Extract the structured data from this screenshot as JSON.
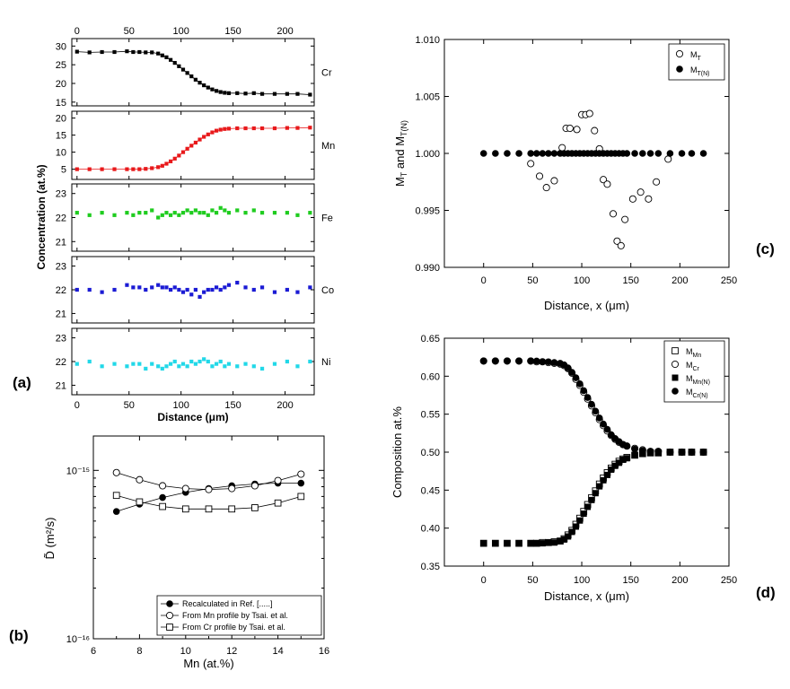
{
  "panel_labels": {
    "a": "(a)",
    "b": "(b)",
    "c": "(c)",
    "d": "(d)"
  },
  "chart_data": [
    {
      "id": "a",
      "type": "scatter",
      "title": "",
      "xlabel": "Distance (μm)",
      "ylabel": "Concentration (at.%)",
      "xlim": [
        -5,
        228
      ],
      "xticks": [
        0,
        50,
        100,
        150,
        200
      ],
      "top_xticks": [
        0,
        50,
        100,
        150,
        200
      ],
      "x": [
        0,
        12,
        24,
        36,
        48,
        54,
        60,
        66,
        72,
        78,
        82,
        86,
        90,
        94,
        98,
        102,
        106,
        110,
        114,
        118,
        122,
        126,
        130,
        134,
        138,
        142,
        146,
        154,
        162,
        170,
        178,
        190,
        202,
        212,
        224
      ],
      "series": [
        {
          "name": "Cr",
          "color": "#000000",
          "ylim": [
            14,
            32
          ],
          "yticks": [
            15,
            20,
            25,
            30
          ],
          "values": [
            28.5,
            28.3,
            28.4,
            28.4,
            28.6,
            28.4,
            28.4,
            28.3,
            28.3,
            28.0,
            27.5,
            27.0,
            26.3,
            25.5,
            24.6,
            23.7,
            22.8,
            21.9,
            21.0,
            20.2,
            19.5,
            18.9,
            18.4,
            18.0,
            17.7,
            17.5,
            17.4,
            17.4,
            17.3,
            17.4,
            17.2,
            17.2,
            17.2,
            17.2,
            17.0
          ]
        },
        {
          "name": "Mn",
          "color": "#e8191b",
          "ylim": [
            2,
            22
          ],
          "yticks": [
            5,
            10,
            15,
            20
          ],
          "values": [
            5.0,
            5.0,
            5.0,
            5.0,
            5.0,
            5.0,
            5.0,
            5.1,
            5.3,
            5.6,
            6.0,
            6.6,
            7.3,
            8.1,
            9.0,
            10.0,
            11.0,
            11.9,
            12.8,
            13.7,
            14.5,
            15.2,
            15.8,
            16.3,
            16.6,
            16.8,
            16.9,
            17.0,
            17.0,
            17.0,
            17.0,
            17.0,
            17.1,
            17.1,
            17.2
          ]
        },
        {
          "name": "Fe",
          "color": "#1fcc1f",
          "ylim": [
            20.6,
            23.4
          ],
          "yticks": [
            21,
            22,
            23
          ],
          "values": [
            22.2,
            22.1,
            22.2,
            22.1,
            22.2,
            22.1,
            22.2,
            22.2,
            22.3,
            22.0,
            22.1,
            22.2,
            22.1,
            22.2,
            22.1,
            22.2,
            22.3,
            22.2,
            22.3,
            22.2,
            22.2,
            22.1,
            22.3,
            22.2,
            22.4,
            22.3,
            22.2,
            22.3,
            22.2,
            22.3,
            22.2,
            22.2,
            22.2,
            22.1,
            22.2
          ]
        },
        {
          "name": "Co",
          "color": "#1b1bd4",
          "ylim": [
            20.6,
            23.4
          ],
          "yticks": [
            21,
            22,
            23
          ],
          "values": [
            22.0,
            22.0,
            21.9,
            22.0,
            22.2,
            22.1,
            22.1,
            22.0,
            22.1,
            22.2,
            22.1,
            22.1,
            22.0,
            22.1,
            22.0,
            21.9,
            22.0,
            21.8,
            22.0,
            21.7,
            21.9,
            22.0,
            22.0,
            22.1,
            22.0,
            22.1,
            22.2,
            22.3,
            22.1,
            22.0,
            22.1,
            21.9,
            22.0,
            21.9,
            22.1
          ]
        },
        {
          "name": "Ni",
          "color": "#22d8e8",
          "ylim": [
            20.6,
            23.4
          ],
          "yticks": [
            21,
            22,
            23
          ],
          "values": [
            21.9,
            22.0,
            21.8,
            21.9,
            21.8,
            21.9,
            21.9,
            21.7,
            21.9,
            21.8,
            21.7,
            21.8,
            21.9,
            22.0,
            21.8,
            21.9,
            21.8,
            22.0,
            21.9,
            22.0,
            22.1,
            22.0,
            21.8,
            21.9,
            22.0,
            21.8,
            21.9,
            21.8,
            21.9,
            21.8,
            21.7,
            21.9,
            22.0,
            21.8,
            22.0
          ]
        }
      ]
    },
    {
      "id": "b",
      "type": "line",
      "title": "",
      "xlabel": "Mn (at.%)",
      "ylabel": "D̃ (m²/s)",
      "xlim": [
        6,
        16
      ],
      "xticks": [
        6,
        8,
        10,
        12,
        14,
        16
      ],
      "yscale": "log",
      "ylim": [
        1e-16,
        1.6e-15
      ],
      "ytick_labels": [
        "10⁻¹⁵",
        "10⁻¹⁶"
      ],
      "ytick_values": [
        1e-15,
        1e-16
      ],
      "legend_position": "bottom-right",
      "series": [
        {
          "name": "Recalculated in Ref. [.....]",
          "marker": "filled-circle",
          "x": [
            7,
            8,
            9,
            10,
            11,
            12,
            13,
            14,
            15
          ],
          "values": [
            5.7e-16,
            6.3e-16,
            6.9e-16,
            7.4e-16,
            7.8e-16,
            8.1e-16,
            8.3e-16,
            8.4e-16,
            8.4e-16
          ]
        },
        {
          "name": "From Mn profile by Tsai. et al.",
          "marker": "open-circle",
          "x": [
            7,
            8,
            9,
            10,
            11,
            12,
            13,
            14,
            15
          ],
          "values": [
            9.7e-16,
            8.8e-16,
            8.1e-16,
            7.8e-16,
            7.7e-16,
            7.8e-16,
            8.1e-16,
            8.7e-16,
            9.5e-16
          ]
        },
        {
          "name": "From Cr profile by Tsai. et al.",
          "marker": "open-square",
          "x": [
            7,
            8,
            9,
            10,
            11,
            12,
            13,
            14,
            15
          ],
          "values": [
            7.1e-16,
            6.5e-16,
            6.1e-16,
            5.9e-16,
            5.9e-16,
            5.9e-16,
            6e-16,
            6.4e-16,
            7e-16
          ]
        }
      ]
    },
    {
      "id": "c",
      "type": "scatter",
      "title": "",
      "xlabel": "Distance, x (μm)",
      "ylabel": "M_T and M_T(N)",
      "xlim": [
        -40,
        250
      ],
      "ylim": [
        0.99,
        1.01
      ],
      "xticks": [
        0,
        50,
        100,
        150,
        200,
        250
      ],
      "yticks": [
        0.99,
        0.995,
        1.0,
        1.005,
        1.01
      ],
      "ytick_labels": [
        "0.990",
        "0.995",
        "1.000",
        "1.005",
        "1.010"
      ],
      "legend_position": "top-right",
      "legend": [
        {
          "label": "M",
          "sub": "T",
          "marker": "open-circle"
        },
        {
          "label": "M",
          "sub": "T(N)",
          "marker": "filled-circle"
        }
      ],
      "series": [
        {
          "name": "M_T",
          "marker": "open-circle",
          "x": [
            48,
            57,
            64,
            72,
            80,
            84,
            88,
            95,
            100,
            104,
            108,
            113,
            118,
            122,
            126,
            132,
            136,
            140,
            144,
            152,
            160,
            168,
            176,
            188
          ],
          "values": [
            0.9991,
            0.998,
            0.997,
            0.9976,
            1.0005,
            1.0022,
            1.0022,
            1.0021,
            1.0034,
            1.0034,
            1.0035,
            1.002,
            1.0004,
            0.9977,
            0.9973,
            0.9947,
            0.9923,
            0.9919,
            0.9942,
            0.996,
            0.9966,
            0.996,
            0.9975,
            0.9995
          ]
        },
        {
          "name": "M_T(N)",
          "marker": "filled-circle",
          "x": [
            0,
            12,
            24,
            36,
            48,
            54,
            60,
            66,
            72,
            78,
            82,
            86,
            90,
            94,
            98,
            102,
            106,
            110,
            114,
            118,
            122,
            126,
            130,
            134,
            138,
            142,
            146,
            154,
            162,
            170,
            178,
            190,
            202,
            212,
            224
          ],
          "values": [
            1.0,
            1.0,
            1.0,
            1.0,
            1.0,
            1.0,
            1.0,
            1.0,
            1.0,
            1.0,
            1.0,
            1.0,
            1.0,
            1.0,
            1.0,
            1.0,
            1.0,
            1.0,
            1.0,
            1.0,
            1.0,
            1.0,
            1.0,
            1.0,
            1.0,
            1.0,
            1.0,
            1.0,
            1.0,
            1.0,
            1.0,
            1.0,
            1.0,
            1.0,
            1.0
          ]
        }
      ]
    },
    {
      "id": "d",
      "type": "scatter",
      "title": "",
      "xlabel": "Distance, x (μm)",
      "ylabel": "Composition at.%",
      "xlim": [
        -40,
        250
      ],
      "ylim": [
        0.35,
        0.65
      ],
      "xticks": [
        0,
        50,
        100,
        150,
        200,
        250
      ],
      "yticks": [
        0.35,
        0.4,
        0.45,
        0.5,
        0.55,
        0.6,
        0.65
      ],
      "ytick_labels": [
        "0.35",
        "0.40",
        "0.45",
        "0.50",
        "0.55",
        "0.60",
        "0.65"
      ],
      "legend_position": "top-right",
      "legend": [
        {
          "label": "M",
          "sub": "Mn",
          "marker": "open-square"
        },
        {
          "label": "M",
          "sub": "Cr",
          "marker": "open-circle"
        },
        {
          "label": "M",
          "sub": "Mn(N)",
          "marker": "filled-square"
        },
        {
          "label": "M",
          "sub": "Cr(N)",
          "marker": "filled-circle"
        }
      ],
      "x": [
        0,
        12,
        24,
        36,
        48,
        54,
        60,
        66,
        72,
        78,
        82,
        86,
        90,
        94,
        98,
        102,
        106,
        110,
        114,
        118,
        122,
        126,
        130,
        134,
        138,
        142,
        146,
        154,
        162,
        170,
        178,
        190,
        202,
        212,
        224
      ],
      "series": [
        {
          "name": "M_Mn",
          "marker": "open-square",
          "values": [
            0.38,
            0.38,
            0.38,
            0.38,
            0.38,
            0.38,
            0.381,
            0.381,
            0.382,
            0.383,
            0.386,
            0.391,
            0.397,
            0.405,
            0.413,
            0.422,
            0.431,
            0.44,
            0.449,
            0.458,
            0.466,
            0.473,
            0.479,
            0.484,
            0.488,
            0.491,
            0.493,
            0.496,
            0.498,
            0.499,
            0.499,
            0.5,
            0.5,
            0.5,
            0.5
          ]
        },
        {
          "name": "M_Cr",
          "marker": "open-circle",
          "values": [
            0.62,
            0.62,
            0.62,
            0.62,
            0.62,
            0.619,
            0.619,
            0.618,
            0.617,
            0.616,
            0.614,
            0.61,
            0.604,
            0.596,
            0.588,
            0.579,
            0.57,
            0.561,
            0.552,
            0.543,
            0.535,
            0.528,
            0.522,
            0.517,
            0.513,
            0.51,
            0.508,
            0.505,
            0.503,
            0.501,
            0.501,
            0.5,
            0.5,
            0.5,
            0.5
          ]
        },
        {
          "name": "M_Mn(N)",
          "marker": "filled-square",
          "values": [
            0.38,
            0.38,
            0.38,
            0.38,
            0.38,
            0.38,
            0.38,
            0.381,
            0.381,
            0.383,
            0.385,
            0.389,
            0.395,
            0.402,
            0.41,
            0.419,
            0.428,
            0.437,
            0.446,
            0.455,
            0.463,
            0.47,
            0.477,
            0.482,
            0.486,
            0.49,
            0.492,
            0.496,
            0.498,
            0.499,
            0.499,
            0.5,
            0.5,
            0.5,
            0.5
          ]
        },
        {
          "name": "M_Cr(N)",
          "marker": "filled-circle",
          "values": [
            0.62,
            0.62,
            0.62,
            0.62,
            0.62,
            0.62,
            0.619,
            0.619,
            0.618,
            0.617,
            0.615,
            0.611,
            0.605,
            0.598,
            0.59,
            0.581,
            0.572,
            0.563,
            0.554,
            0.545,
            0.537,
            0.53,
            0.523,
            0.518,
            0.514,
            0.51,
            0.508,
            0.504,
            0.502,
            0.501,
            0.501,
            0.5,
            0.5,
            0.5,
            0.5
          ]
        }
      ]
    }
  ]
}
